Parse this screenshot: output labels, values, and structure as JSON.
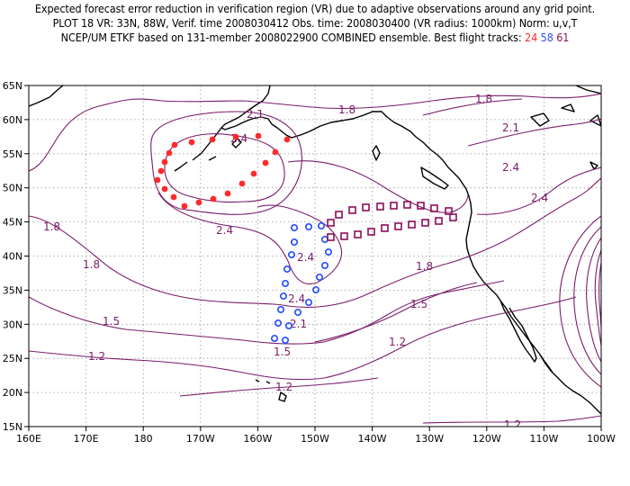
{
  "title": {
    "line1": "Expected forecast error reduction in verification region (VR) due to adaptive observations around any grid point.",
    "line2": "PLOT 18 VR: 33N, 88W, Verif. time 2008030412 Obs. time: 2008030400 (VR radius: 1000km) Norm: u,v,T",
    "line3_prefix": "NCEP/UM ETKF based on 131-member 2008022900 COMBINED ensemble.  Best flight tracks:",
    "track_red": "24",
    "track_blue": "58",
    "track_purple": "61"
  },
  "colors": {
    "contour": "#7a1e6a",
    "track_red": "#ff2a2a",
    "track_blue": "#2a52ff",
    "track_purple": "#8b0f5a",
    "vr_circle": "#ff2a2a"
  },
  "map": {
    "lon_labels": [
      "160E",
      "170E",
      "180",
      "170W",
      "160W",
      "150W",
      "140W",
      "130W",
      "120W",
      "110W",
      "100W"
    ],
    "lat_labels": [
      "65N",
      "60N",
      "55N",
      "50N",
      "45N",
      "40N",
      "35N",
      "30N",
      "25N",
      "20N",
      "15N"
    ],
    "contour_labels": [
      "1.8",
      "2.1",
      "2.4",
      "2.1",
      "1.8",
      "2.4",
      "1.8",
      "1.8",
      "2.4",
      "2.4",
      "2.4",
      "1.8",
      "1.5",
      "1.5",
      "1.5",
      "1.2",
      "1.2",
      "1.2",
      "1.2",
      "2.4",
      "2.1"
    ]
  }
}
